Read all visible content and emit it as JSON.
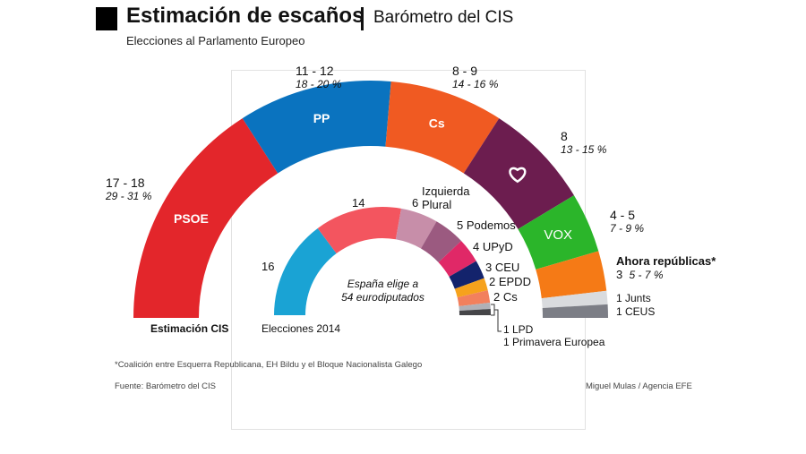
{
  "header": {
    "title": "Estimación de escaños",
    "subtitle": "Barómetro del CIS",
    "description": "Elecciones al Parlamento Europeo"
  },
  "chart_data": [
    {
      "type": "pie",
      "variant": "semicircle-parliament",
      "label": "Estimación CIS",
      "series": [
        {
          "party": "PSOE",
          "seats": "17 - 18",
          "seats_mid": 17.5,
          "vote": "29 - 31 %",
          "color": "#e3262b",
          "segment_label": "PSOE"
        },
        {
          "party": "PP",
          "seats": "11 - 12",
          "seats_mid": 11.5,
          "vote": "18 - 20 %",
          "color": "#0a73bf",
          "segment_label": "PP"
        },
        {
          "party": "Cs",
          "seats": "8 - 9",
          "seats_mid": 8.5,
          "vote": "14 - 16 %",
          "color": "#f05a22",
          "segment_label": "Cs"
        },
        {
          "party": "Podemos",
          "seats": "8",
          "seats_mid": 8,
          "vote": "13 - 15 %",
          "color": "#6c1d4f",
          "segment_label": "",
          "icon": "heart-icon"
        },
        {
          "party": "VOX",
          "seats": "4 - 5",
          "seats_mid": 4.5,
          "vote": "7 - 9 %",
          "color": "#2bb52a",
          "segment_label": "VOX"
        },
        {
          "party": "Ahora repúblicas*",
          "seats": "3",
          "seats_mid": 3,
          "vote": "5 - 7 %",
          "color": "#f57a16"
        },
        {
          "party": "Junts",
          "seats": "1",
          "seats_mid": 1,
          "color": "#d9dbde"
        },
        {
          "party": "CEUS",
          "seats": "1",
          "seats_mid": 1,
          "color": "#7c7e86"
        }
      ]
    },
    {
      "type": "pie",
      "variant": "semicircle-parliament",
      "label": "Elecciones 2014",
      "center_text": [
        "España elige a",
        "54 eurodiputados"
      ],
      "series": [
        {
          "party": "PP",
          "seats": 16,
          "color": "#1aa3d4"
        },
        {
          "party": "PSOE",
          "seats": 14,
          "color": "#f3555f"
        },
        {
          "party": "Izquierda Plural",
          "seats": 6,
          "color": "#c78ea9"
        },
        {
          "party": "Podemos",
          "seats": 5,
          "color": "#9b5a80"
        },
        {
          "party": "UPyD",
          "seats": 4,
          "color": "#e02867"
        },
        {
          "party": "CEU",
          "seats": 3,
          "color": "#13236c"
        },
        {
          "party": "EPDD",
          "seats": 2,
          "color": "#f6a21c"
        },
        {
          "party": "Cs",
          "seats": 2,
          "color": "#f2805d"
        },
        {
          "party": "LPD",
          "seats": 1,
          "color": "#b0b0b6"
        },
        {
          "party": "Primavera Europea",
          "seats": 1,
          "color": "#454548"
        }
      ]
    }
  ],
  "labels": {
    "psoe": {
      "seats": "17 - 18",
      "pct": "29 - 31 %"
    },
    "pp": {
      "seats": "11 - 12",
      "pct": "18 - 20 %"
    },
    "cs": {
      "seats": "8 - 9",
      "pct": "14 - 16 %"
    },
    "podemos": {
      "seats": "8",
      "pct": "13 - 15 %"
    },
    "vox": {
      "seats": "4 - 5",
      "pct": "7 - 9 %"
    },
    "ahora": {
      "name": "Ahora repúblicas*",
      "seats": "3",
      "pct": "5 - 7 %"
    },
    "junts": "1  Junts",
    "ceus": "1  CEUS",
    "estimacion": "Estimación CIS",
    "elecciones": "Elecciones 2014",
    "i16": "16",
    "i14": "14",
    "iu_n": "6",
    "iu_1": "Izquierda",
    "iu_2": "Plural",
    "pod": "5 Podemos",
    "upyd": "4 UPyD",
    "ceu": "3 CEU",
    "epdd": "2 EPDD",
    "cs2": "2 Cs",
    "lpd": "1  LPD",
    "prim": "1  Primavera Europea",
    "center1": "España elige a",
    "center2": "54 eurodiputados"
  },
  "footer": {
    "note": "*Coalición entre Esquerra Republicana, EH Bildu y el Bloque Nacionalista Galego",
    "source": "Fuente: Barómetro del CIS",
    "credit": "Miguel Mulas /  Agencia EFE"
  }
}
